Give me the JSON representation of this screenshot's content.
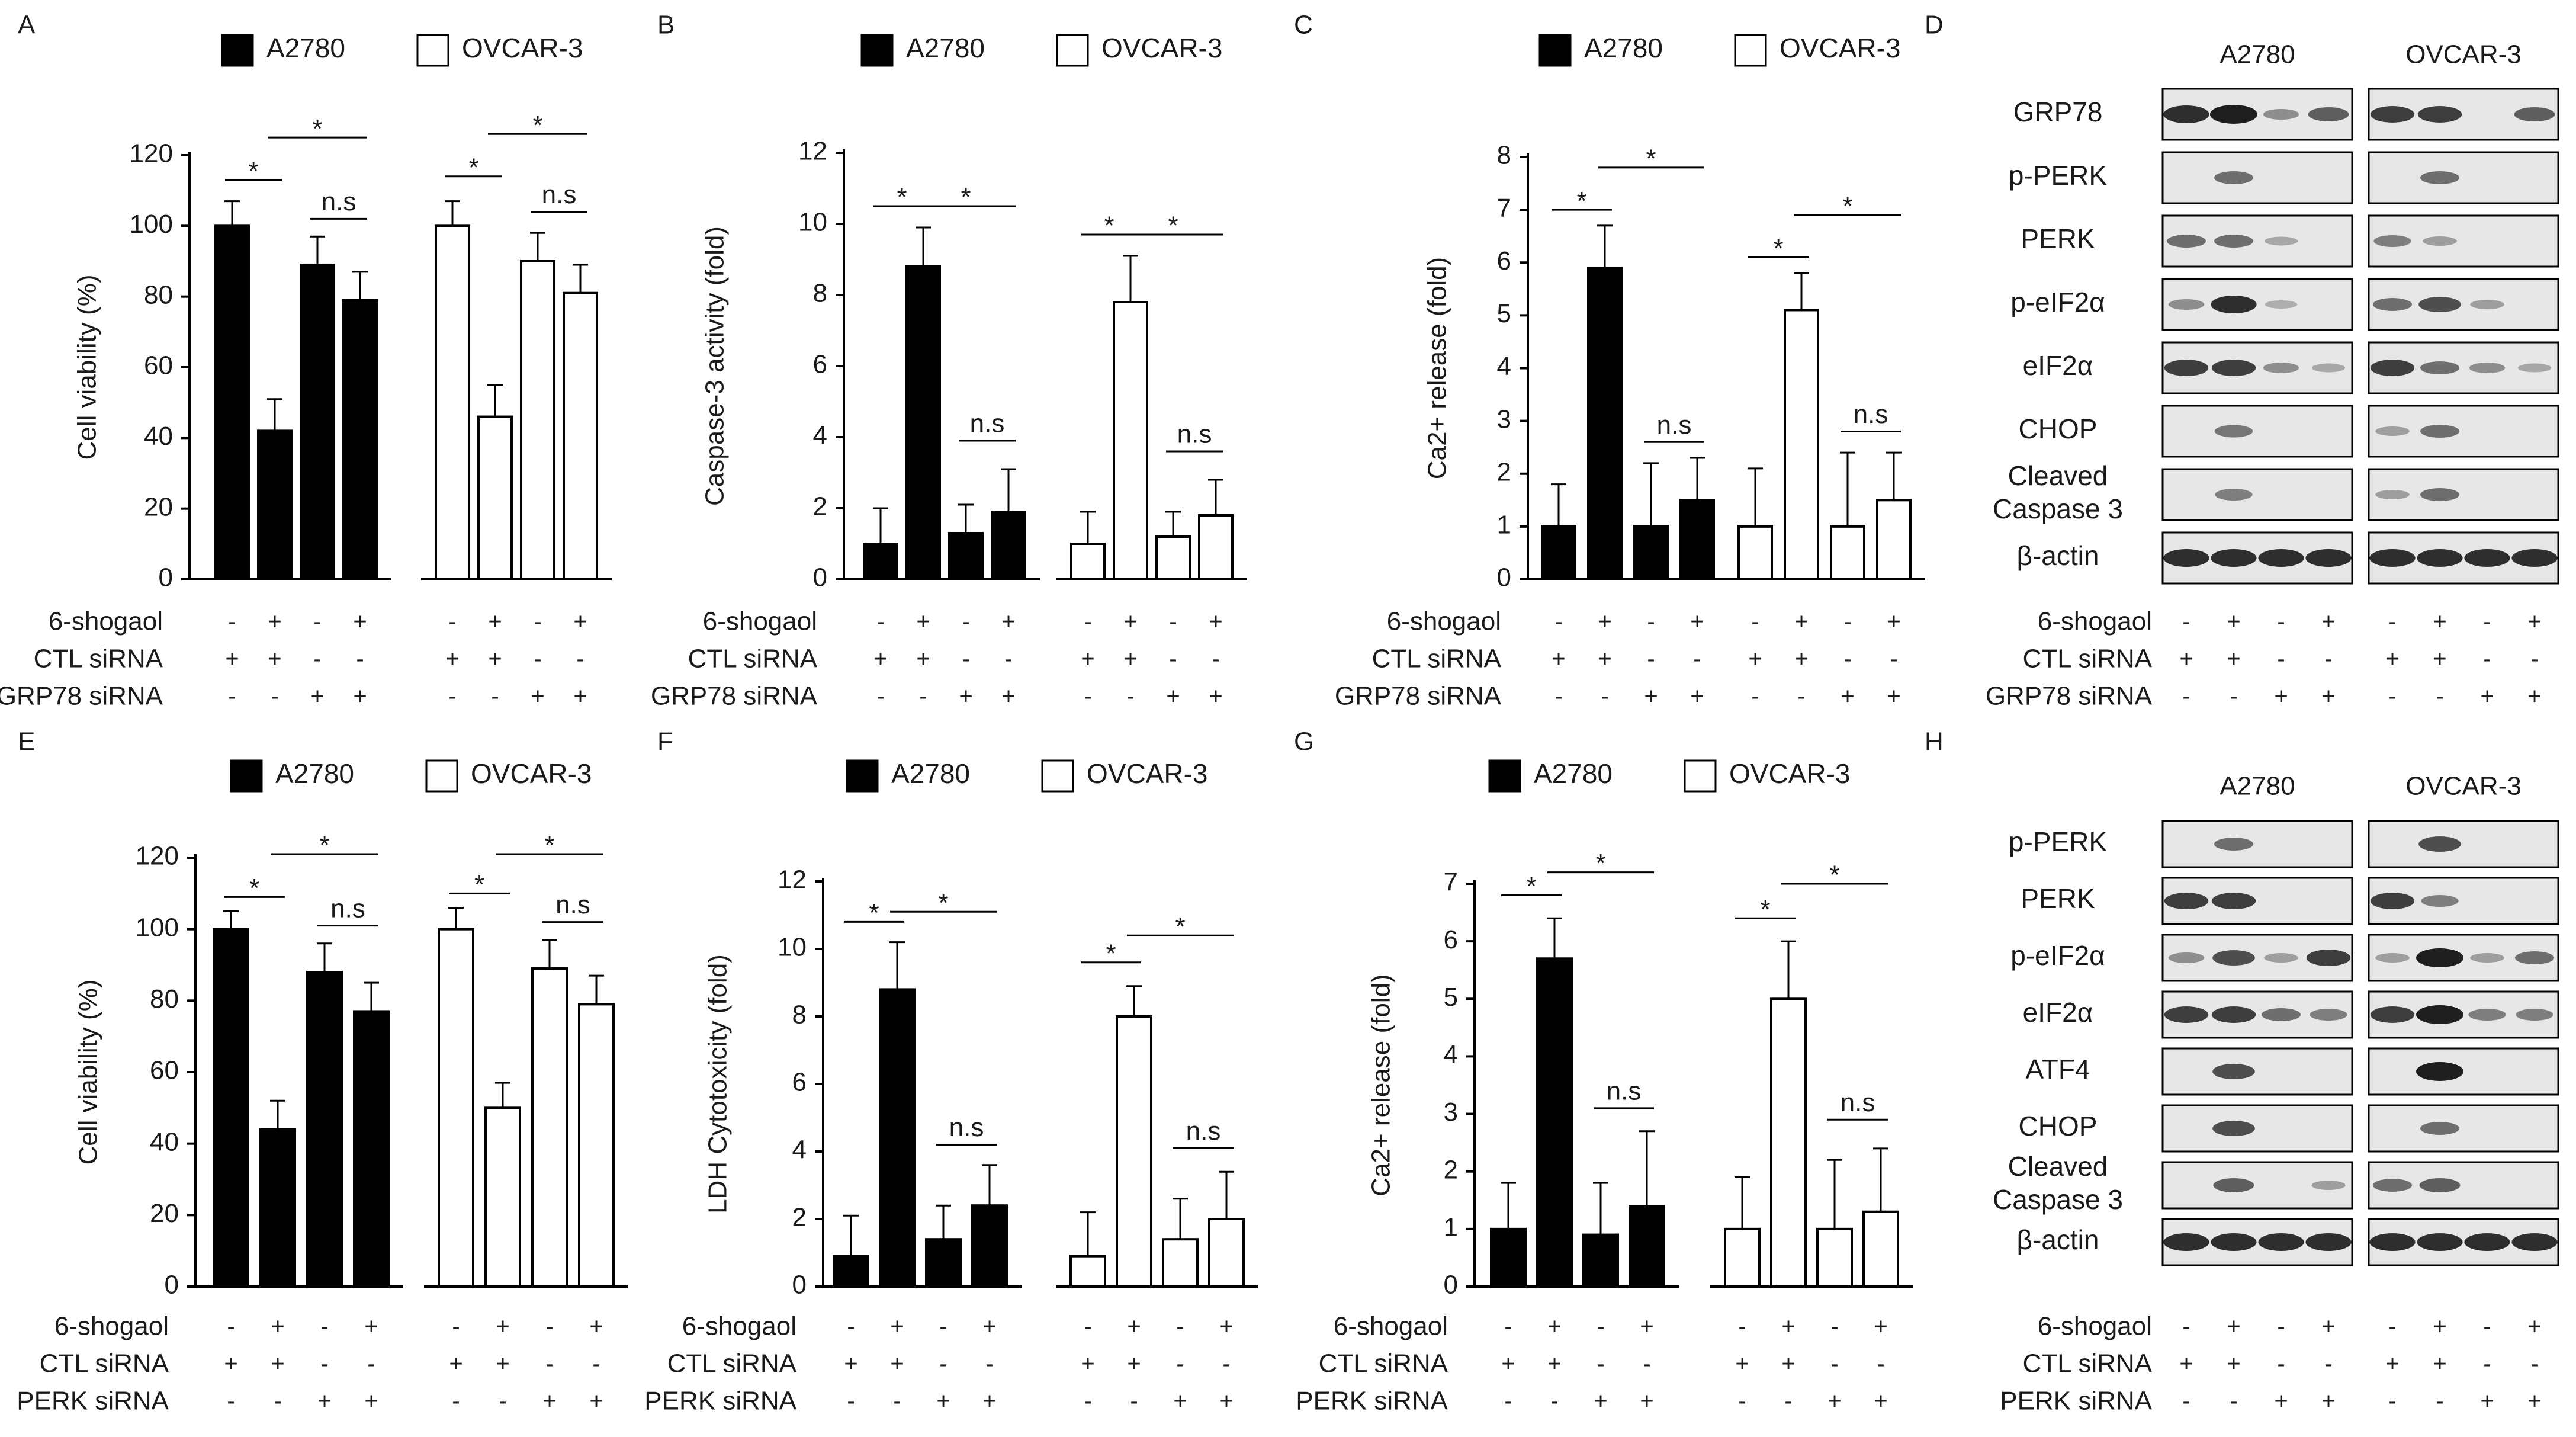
{
  "legend": {
    "a2780": "A2780",
    "ovcar3": "OVCAR-3"
  },
  "colors": {
    "a2780_fill": "#000000",
    "ovcar3_fill": "#ffffff",
    "stroke": "#000000",
    "blot_bg": "#e7e7e7",
    "blot_band": "#1e1e1e"
  },
  "treatments": {
    "shogaol": {
      "label": "6-shogaol",
      "signs": [
        "-",
        "+",
        "-",
        "+",
        "-",
        "+",
        "-",
        "+"
      ]
    },
    "ctl": {
      "label": "CTL siRNA",
      "signs": [
        "+",
        "+",
        "-",
        "-",
        "+",
        "+",
        "-",
        "-"
      ]
    },
    "grp78": {
      "label": "GRP78 siRNA",
      "signs": [
        "-",
        "-",
        "+",
        "+",
        "-",
        "-",
        "+",
        "+"
      ]
    },
    "perk": {
      "label": "PERK siRNA",
      "signs": [
        "-",
        "-",
        "+",
        "+",
        "-",
        "-",
        "+",
        "+"
      ]
    }
  },
  "chart_data": [
    {
      "panel": "A",
      "type": "bar",
      "ylabel": "Cell viability  (%)",
      "ylim": [
        0,
        120
      ],
      "yticks": [
        "0",
        "20",
        "40",
        "60",
        "80",
        "100",
        "120"
      ],
      "series": [
        {
          "name": "A2780",
          "values": [
            100,
            42,
            89,
            79
          ],
          "errors": [
            7,
            9,
            8,
            8
          ]
        },
        {
          "name": "OVCAR-3",
          "values": [
            100,
            46,
            90,
            81
          ],
          "errors": [
            7,
            9,
            8,
            8
          ]
        }
      ],
      "annotations": [
        {
          "text": "*",
          "series": 0,
          "from": 0,
          "to": 1,
          "y": 113
        },
        {
          "text": "*",
          "series": 0,
          "from": 1,
          "to": 3,
          "y": 125
        },
        {
          "text": "n.s",
          "series": 0,
          "from": 2,
          "to": 3,
          "y": 102
        },
        {
          "text": "*",
          "series": 1,
          "from": 0,
          "to": 1,
          "y": 114
        },
        {
          "text": "*",
          "series": 1,
          "from": 1,
          "to": 3,
          "y": 126
        },
        {
          "text": "n.s",
          "series": 1,
          "from": 2,
          "to": 3,
          "y": 104
        }
      ],
      "knockdown": "grp78"
    },
    {
      "panel": "B",
      "type": "bar",
      "ylabel": "Caspase-3 activity (fold)",
      "ylim": [
        0,
        12
      ],
      "yticks": [
        "0",
        "2",
        "4",
        "6",
        "8",
        "10",
        "12"
      ],
      "series": [
        {
          "name": "A2780",
          "values": [
            1.0,
            8.8,
            1.3,
            1.9
          ],
          "errors": [
            1.0,
            1.1,
            0.8,
            1.2
          ]
        },
        {
          "name": "OVCAR-3",
          "values": [
            1.0,
            7.8,
            1.2,
            1.8
          ],
          "errors": [
            0.9,
            1.3,
            0.7,
            1.0
          ]
        }
      ],
      "annotations": [
        {
          "text": "*",
          "series": 0,
          "from": 0,
          "to": 1,
          "y": 10.5
        },
        {
          "text": "*",
          "series": 0,
          "from": 1,
          "to": 3,
          "y": 10.5
        },
        {
          "text": "n.s",
          "series": 0,
          "from": 2,
          "to": 3,
          "y": 3.9
        },
        {
          "text": "*",
          "series": 1,
          "from": 0,
          "to": 1,
          "y": 9.7
        },
        {
          "text": "*",
          "series": 1,
          "from": 1,
          "to": 3,
          "y": 9.7
        },
        {
          "text": "n.s",
          "series": 1,
          "from": 2,
          "to": 3,
          "y": 3.6
        }
      ],
      "knockdown": "grp78"
    },
    {
      "panel": "C",
      "type": "bar",
      "ylabel": "Ca2+ release (fold)",
      "ylim": [
        0,
        8
      ],
      "yticks": [
        "0",
        "1",
        "2",
        "3",
        "4",
        "5",
        "6",
        "7",
        "8"
      ],
      "series": [
        {
          "name": "A2780",
          "values": [
            1.0,
            5.9,
            1.0,
            1.5
          ],
          "errors": [
            0.8,
            0.8,
            1.2,
            0.8
          ]
        },
        {
          "name": "OVCAR-3",
          "values": [
            1.0,
            5.1,
            1.0,
            1.5
          ],
          "errors": [
            1.1,
            0.7,
            1.4,
            0.9
          ]
        }
      ],
      "annotations": [
        {
          "text": "*",
          "series": 0,
          "from": 0,
          "to": 1,
          "y": 7.0
        },
        {
          "text": "*",
          "series": 0,
          "from": 1,
          "to": 3,
          "y": 7.8
        },
        {
          "text": "n.s",
          "series": 0,
          "from": 2,
          "to": 3,
          "y": 2.6
        },
        {
          "text": "*",
          "series": 1,
          "from": 0,
          "to": 1,
          "y": 6.1
        },
        {
          "text": "*",
          "series": 1,
          "from": 1,
          "to": 3,
          "y": 6.9
        },
        {
          "text": "n.s",
          "series": 1,
          "from": 2,
          "to": 3,
          "y": 2.8
        }
      ],
      "knockdown": "grp78"
    },
    {
      "panel": "E",
      "type": "bar",
      "ylabel": "Cell viability  (%)",
      "ylim": [
        0,
        120
      ],
      "yticks": [
        "0",
        "20",
        "40",
        "60",
        "80",
        "100",
        "120"
      ],
      "series": [
        {
          "name": "A2780",
          "values": [
            100,
            44,
            88,
            77
          ],
          "errors": [
            5,
            8,
            8,
            8
          ]
        },
        {
          "name": "OVCAR-3",
          "values": [
            100,
            50,
            89,
            79
          ],
          "errors": [
            6,
            7,
            8,
            8
          ]
        }
      ],
      "annotations": [
        {
          "text": "*",
          "series": 0,
          "from": 0,
          "to": 1,
          "y": 109
        },
        {
          "text": "*",
          "series": 0,
          "from": 1,
          "to": 3,
          "y": 121
        },
        {
          "text": "n.s",
          "series": 0,
          "from": 2,
          "to": 3,
          "y": 101
        },
        {
          "text": "*",
          "series": 1,
          "from": 0,
          "to": 1,
          "y": 110
        },
        {
          "text": "*",
          "series": 1,
          "from": 1,
          "to": 3,
          "y": 121
        },
        {
          "text": "n.s",
          "series": 1,
          "from": 2,
          "to": 3,
          "y": 102
        }
      ],
      "knockdown": "perk"
    },
    {
      "panel": "F",
      "type": "bar",
      "ylabel": "LDH Cytotoxicity (fold)",
      "ylim": [
        0,
        12
      ],
      "yticks": [
        "0",
        "2",
        "4",
        "6",
        "8",
        "10",
        "12"
      ],
      "series": [
        {
          "name": "A2780",
          "values": [
            0.9,
            8.8,
            1.4,
            2.4
          ],
          "errors": [
            1.2,
            1.4,
            1.0,
            1.2
          ]
        },
        {
          "name": "OVCAR-3",
          "values": [
            0.9,
            8.0,
            1.4,
            2.0
          ],
          "errors": [
            1.3,
            0.9,
            1.2,
            1.4
          ]
        }
      ],
      "annotations": [
        {
          "text": "*",
          "series": 0,
          "from": 0,
          "to": 1,
          "y": 10.8
        },
        {
          "text": "*",
          "series": 0,
          "from": 1,
          "to": 3,
          "y": 11.1
        },
        {
          "text": "n.s",
          "series": 0,
          "from": 2,
          "to": 3,
          "y": 4.2
        },
        {
          "text": "*",
          "series": 1,
          "from": 0,
          "to": 1,
          "y": 9.6
        },
        {
          "text": "*",
          "series": 1,
          "from": 1,
          "to": 3,
          "y": 10.4
        },
        {
          "text": "n.s",
          "series": 1,
          "from": 2,
          "to": 3,
          "y": 4.1
        }
      ],
      "knockdown": "perk"
    },
    {
      "panel": "G",
      "type": "bar",
      "ylabel": "Ca2+ release (fold)",
      "ylim": [
        0,
        7
      ],
      "yticks": [
        "0",
        "1",
        "2",
        "3",
        "4",
        "5",
        "6",
        "7"
      ],
      "series": [
        {
          "name": "A2780",
          "values": [
            1.0,
            5.7,
            0.9,
            1.4
          ],
          "errors": [
            0.8,
            0.7,
            0.9,
            1.3
          ]
        },
        {
          "name": "OVCAR-3",
          "values": [
            1.0,
            5.0,
            1.0,
            1.3
          ],
          "errors": [
            0.9,
            1.0,
            1.2,
            1.1
          ]
        }
      ],
      "annotations": [
        {
          "text": "*",
          "series": 0,
          "from": 0,
          "to": 1,
          "y": 6.8
        },
        {
          "text": "*",
          "series": 0,
          "from": 1,
          "to": 3,
          "y": 7.2
        },
        {
          "text": "n.s",
          "series": 0,
          "from": 2,
          "to": 3,
          "y": 3.1
        },
        {
          "text": "*",
          "series": 1,
          "from": 0,
          "to": 1,
          "y": 6.4
        },
        {
          "text": "*",
          "series": 1,
          "from": 1,
          "to": 3,
          "y": 7.0
        },
        {
          "text": "n.s",
          "series": 1,
          "from": 2,
          "to": 3,
          "y": 2.9
        }
      ],
      "knockdown": "perk"
    }
  ],
  "blots": [
    {
      "panel": "D",
      "columns": [
        "A2780",
        "OVCAR-3"
      ],
      "knockdown": "grp78",
      "rows": [
        {
          "label": [
            "GRP78"
          ],
          "bands": [
            0.9,
            1.0,
            0.3,
            0.6,
            0.8,
            0.8,
            0.0,
            0.6
          ]
        },
        {
          "label": [
            "p-PERK"
          ],
          "bands": [
            0.0,
            0.5,
            0.0,
            0.0,
            0.0,
            0.5,
            0.0,
            0.0
          ]
        },
        {
          "label": [
            "PERK"
          ],
          "bands": [
            0.5,
            0.5,
            0.15,
            0.0,
            0.4,
            0.2,
            0.0,
            0.0
          ]
        },
        {
          "label": [
            "p-eIF2α"
          ],
          "bands": [
            0.3,
            0.9,
            0.1,
            0.0,
            0.5,
            0.7,
            0.2,
            0.0
          ]
        },
        {
          "label": [
            "eIF2α"
          ],
          "bands": [
            0.8,
            0.8,
            0.3,
            0.15,
            0.8,
            0.5,
            0.3,
            0.15
          ]
        },
        {
          "label": [
            "CHOP"
          ],
          "bands": [
            0.0,
            0.45,
            0.0,
            0.0,
            0.2,
            0.5,
            0.0,
            0.0
          ]
        },
        {
          "label": [
            "Cleaved",
            "Caspase 3"
          ],
          "bands": [
            0.0,
            0.4,
            0.0,
            0.0,
            0.2,
            0.5,
            0.0,
            0.0
          ]
        },
        {
          "label": [
            "β-actin"
          ],
          "bands": [
            0.9,
            0.9,
            0.9,
            0.9,
            0.9,
            0.9,
            0.9,
            0.9
          ]
        }
      ]
    },
    {
      "panel": "H",
      "columns": [
        "A2780",
        "OVCAR-3"
      ],
      "knockdown": "perk",
      "rows": [
        {
          "label": [
            "p-PERK"
          ],
          "bands": [
            0.0,
            0.5,
            0.0,
            0.0,
            0.0,
            0.7,
            0.0,
            0.0
          ]
        },
        {
          "label": [
            "PERK"
          ],
          "bands": [
            0.8,
            0.8,
            0.0,
            0.0,
            0.8,
            0.4,
            0.0,
            0.0
          ]
        },
        {
          "label": [
            "p-eIF2α"
          ],
          "bands": [
            0.3,
            0.7,
            0.2,
            0.8,
            0.2,
            1.0,
            0.2,
            0.5
          ]
        },
        {
          "label": [
            "eIF2α"
          ],
          "bands": [
            0.8,
            0.8,
            0.5,
            0.4,
            0.8,
            1.0,
            0.4,
            0.4
          ]
        },
        {
          "label": [
            "ATF4"
          ],
          "bands": [
            0.0,
            0.7,
            0.0,
            0.0,
            0.0,
            1.0,
            0.0,
            0.0
          ]
        },
        {
          "label": [
            "CHOP"
          ],
          "bands": [
            0.0,
            0.7,
            0.0,
            0.0,
            0.0,
            0.5,
            0.0,
            0.0
          ]
        },
        {
          "label": [
            "Cleaved",
            "Caspase 3"
          ],
          "bands": [
            0.0,
            0.6,
            0.0,
            0.2,
            0.5,
            0.6,
            0.0,
            0.0
          ]
        },
        {
          "label": [
            "β-actin"
          ],
          "bands": [
            0.9,
            0.9,
            0.9,
            0.9,
            0.9,
            0.9,
            0.9,
            0.9
          ]
        }
      ]
    }
  ]
}
